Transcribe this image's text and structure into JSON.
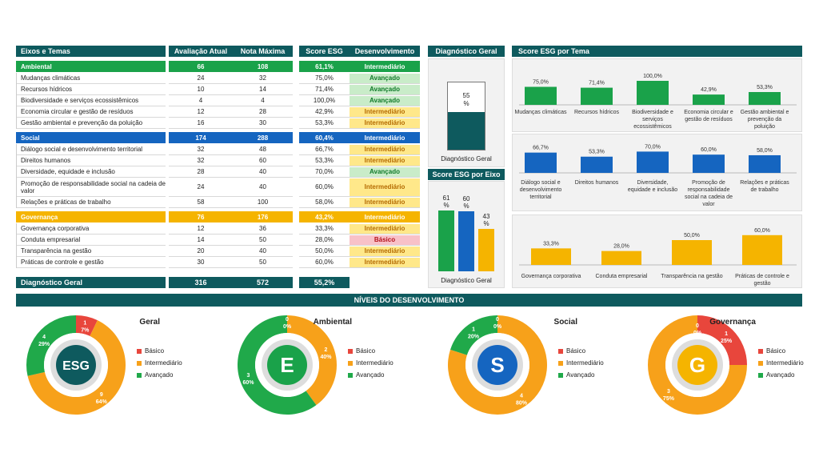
{
  "table": {
    "headers": {
      "eixos": "Eixos e Temas",
      "aval": "Avaliação Atual",
      "nota": "Nota Máxima",
      "score": "Score ESG",
      "dev": "Desenvolvimento"
    },
    "groups": [
      {
        "name": "Ambiental",
        "aval": "66",
        "nota": "108",
        "score": "61,1%",
        "dev": "Intermediário",
        "color": "#1aa24a",
        "items": [
          {
            "name": "Mudanças climáticas",
            "aval": "24",
            "nota": "32",
            "score": "75,0%",
            "dev": "Avançado",
            "lvl": "adv"
          },
          {
            "name": "Recursos hídricos",
            "aval": "10",
            "nota": "14",
            "score": "71,4%",
            "dev": "Avançado",
            "lvl": "adv"
          },
          {
            "name": "Biodiversidade e serviços ecossistêmicos",
            "aval": "4",
            "nota": "4",
            "score": "100,0%",
            "dev": "Avançado",
            "lvl": "adv"
          },
          {
            "name": "Economia circular e gestão de resíduos",
            "aval": "12",
            "nota": "28",
            "score": "42,9%",
            "dev": "Intermediário",
            "lvl": "int"
          },
          {
            "name": "Gestão ambiental e prevenção da poluição",
            "aval": "16",
            "nota": "30",
            "score": "53,3%",
            "dev": "Intermediário",
            "lvl": "int"
          }
        ]
      },
      {
        "name": "Social",
        "aval": "174",
        "nota": "288",
        "score": "60,4%",
        "dev": "Intermediário",
        "color": "#1565c0",
        "items": [
          {
            "name": "Diálogo social e desenvolvimento territorial",
            "aval": "32",
            "nota": "48",
            "score": "66,7%",
            "dev": "Intermediário",
            "lvl": "int"
          },
          {
            "name": "Direitos humanos",
            "aval": "32",
            "nota": "60",
            "score": "53,3%",
            "dev": "Intermediário",
            "lvl": "int"
          },
          {
            "name": "Diversidade, equidade e inclusão",
            "aval": "28",
            "nota": "40",
            "score": "70,0%",
            "dev": "Avançado",
            "lvl": "adv"
          },
          {
            "name": "Promoção de responsabilidade social na cadeia de valor",
            "aval": "24",
            "nota": "40",
            "score": "60,0%",
            "dev": "Intermediário",
            "lvl": "int",
            "tall": true
          },
          {
            "name": "Relações e práticas de trabalho",
            "aval": "58",
            "nota": "100",
            "score": "58,0%",
            "dev": "Intermediário",
            "lvl": "int"
          }
        ]
      },
      {
        "name": "Governança",
        "aval": "76",
        "nota": "176",
        "score": "43,2%",
        "dev": "Intermediário",
        "color": "#f5b400",
        "items": [
          {
            "name": "Governança corporativa",
            "aval": "12",
            "nota": "36",
            "score": "33,3%",
            "dev": "Intermediário",
            "lvl": "int"
          },
          {
            "name": "Conduta empresarial",
            "aval": "14",
            "nota": "50",
            "score": "28,0%",
            "dev": "Básico",
            "lvl": "bas"
          },
          {
            "name": "Transparência na gestão",
            "aval": "20",
            "nota": "40",
            "score": "50,0%",
            "dev": "Intermediário",
            "lvl": "int"
          },
          {
            "name": "Práticas de controle e gestão",
            "aval": "30",
            "nota": "50",
            "score": "60,0%",
            "dev": "Intermediário",
            "lvl": "int"
          }
        ]
      }
    ],
    "total": {
      "name": "Diagnóstico Geral",
      "aval": "316",
      "nota": "572",
      "score": "55,2%"
    }
  },
  "diag": {
    "title": "Diagnóstico Geral",
    "value_top": "55",
    "value_bot": "%",
    "label": "Diagnóstico Geral",
    "value": 55
  },
  "eixo": {
    "title": "Score ESG por Eixo",
    "label": "Diagnóstico Geral",
    "bars": [
      {
        "top": "61",
        "bot": "%",
        "value": 61,
        "color": "#1aa24a"
      },
      {
        "top": "60",
        "bot": "%",
        "value": 60,
        "color": "#1565c0"
      },
      {
        "top": "43",
        "bot": "%",
        "value": 43,
        "color": "#f5b400"
      }
    ]
  },
  "chart_data": [
    {
      "type": "bar",
      "title": "Score ESG por Tema",
      "color": "#1aa24a",
      "categories": [
        "Mudanças climáticas",
        "Recursos hídricos",
        "Biodiversidade e serviços ecossistêmicos",
        "Economia circular e gestão de resíduos",
        "Gestão ambiental e prevenção da poluição"
      ],
      "values": [
        75.0,
        71.4,
        100.0,
        42.9,
        53.3
      ],
      "labels": [
        "75,0%",
        "71,4%",
        "100,0%",
        "42,9%",
        "53,3%"
      ]
    },
    {
      "type": "bar",
      "color": "#1565c0",
      "categories": [
        "Diálogo social e desenvolvimento territorial",
        "Direitos humanos",
        "Diversidade, equidade e inclusão",
        "Promoção de responsabilidade social na cadeia de valor",
        "Relações e práticas de trabalho"
      ],
      "values": [
        66.7,
        53.3,
        70.0,
        60.0,
        58.0
      ],
      "labels": [
        "66,7%",
        "53,3%",
        "70,0%",
        "60,0%",
        "58,0%"
      ]
    },
    {
      "type": "bar",
      "color": "#f5b400",
      "categories": [
        "Governança corporativa",
        "Conduta empresarial",
        "Transparência na gestão",
        "Práticas de controle e gestão"
      ],
      "values": [
        33.3,
        28.0,
        50.0,
        60.0
      ],
      "labels": [
        "33,3%",
        "28,0%",
        "50,0%",
        "60,0%"
      ]
    },
    {
      "type": "pie",
      "title": "Geral",
      "center": "ESG",
      "center_color": "#0e5a5e",
      "slices": [
        {
          "name": "Básico",
          "count": "1",
          "pct": "7%",
          "value": 1
        },
        {
          "name": "Intermediário",
          "count": "9",
          "pct": "64%",
          "value": 9
        },
        {
          "name": "Avançado",
          "count": "4",
          "pct": "29%",
          "value": 4
        }
      ]
    },
    {
      "type": "pie",
      "title": "Ambiental",
      "center": "E",
      "center_color": "#1aa24a",
      "slices": [
        {
          "name": "Básico",
          "count": "0",
          "pct": "0%",
          "value": 0
        },
        {
          "name": "Intermediário",
          "count": "2",
          "pct": "40%",
          "value": 2
        },
        {
          "name": "Avançado",
          "count": "3",
          "pct": "60%",
          "value": 3
        }
      ]
    },
    {
      "type": "pie",
      "title": "Social",
      "center": "S",
      "center_color": "#1565c0",
      "slices": [
        {
          "name": "Básico",
          "count": "0",
          "pct": "0%",
          "value": 0
        },
        {
          "name": "Intermediário",
          "count": "4",
          "pct": "80%",
          "value": 4
        },
        {
          "name": "Avançado",
          "count": "1",
          "pct": "20%",
          "value": 1
        }
      ]
    },
    {
      "type": "pie",
      "title": "Governança",
      "center": "G",
      "center_color": "#f5b400",
      "slices": [
        {
          "name": "Básico",
          "count": "1",
          "pct": "25%",
          "value": 1
        },
        {
          "name": "Intermediário",
          "count": "3",
          "pct": "75%",
          "value": 3
        },
        {
          "name": "Avançado",
          "count": "0",
          "pct": "0%",
          "value": 0
        }
      ]
    }
  ],
  "levels_title": "NÍVEIS  DO DESENVOLVIMENTO",
  "legend": [
    "Básico",
    "Intermediário",
    "Avançado"
  ],
  "colors": {
    "basico": "#e8463c",
    "intermediario": "#f7a11a",
    "avancado": "#20a94a",
    "header": "#0e5a5e"
  }
}
